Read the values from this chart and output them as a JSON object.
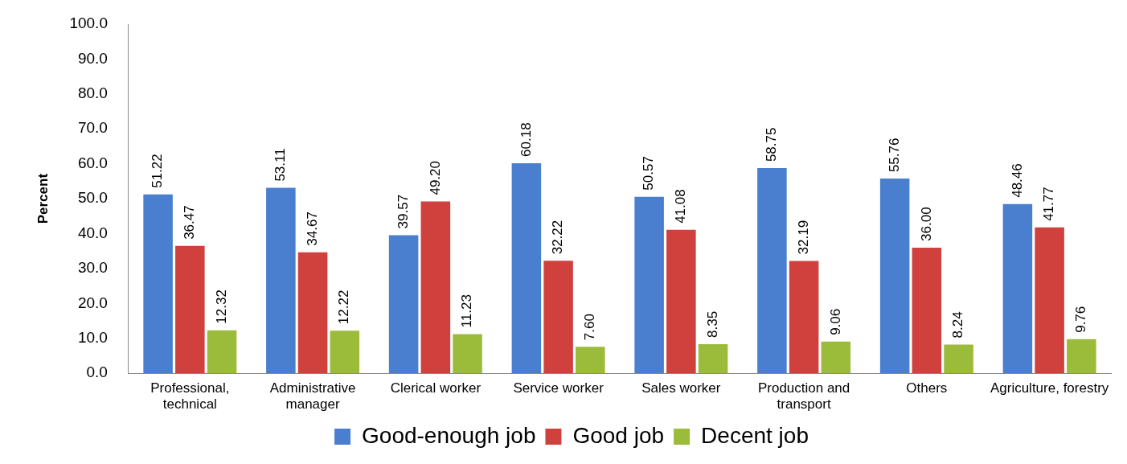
{
  "chart_data": {
    "type": "bar",
    "ylabel": "Percent",
    "categories": [
      "Professional, technical",
      "Administrative manager",
      "Clerical worker",
      "Service worker",
      "Sales worker",
      "Production and transport",
      "Others",
      "Agriculture, forestry"
    ],
    "series": [
      {
        "name": "Good-enough job",
        "color": "#4a7fcf",
        "values": [
          51.22,
          53.11,
          39.57,
          60.18,
          50.57,
          58.75,
          55.76,
          48.46
        ],
        "value_labels": [
          "51.22",
          "53.11",
          "39.57",
          "60.18",
          "50.57",
          "58.75",
          "55.76",
          "48.46"
        ]
      },
      {
        "name": "Good job",
        "color": "#d0413e",
        "values": [
          36.47,
          34.67,
          49.2,
          32.22,
          41.08,
          32.19,
          36.0,
          41.77
        ],
        "value_labels": [
          "36.47",
          "34.67",
          "49.20",
          "32.22",
          "41.08",
          "32.19",
          "36.00",
          "41.77"
        ]
      },
      {
        "name": "Decent job",
        "color": "#9bbb3b",
        "values": [
          12.32,
          12.22,
          11.23,
          7.6,
          8.35,
          9.06,
          8.24,
          9.76
        ],
        "value_labels": [
          "12.32",
          "12.22",
          "11.23",
          "7.60",
          "8.35",
          "9.06",
          "8.24",
          "9.76"
        ]
      }
    ],
    "ylim": [
      0,
      100
    ],
    "yticks": [
      {
        "value": 0,
        "label": "0.0"
      },
      {
        "value": 10,
        "label": "10.0"
      },
      {
        "value": 20,
        "label": "20.0"
      },
      {
        "value": 30,
        "label": "30.0"
      },
      {
        "value": 40,
        "label": "40.0"
      },
      {
        "value": 50,
        "label": "50.0"
      },
      {
        "value": 60,
        "label": "60.0"
      },
      {
        "value": 70,
        "label": "70.0"
      },
      {
        "value": 80,
        "label": "80.0"
      },
      {
        "value": 90,
        "label": "90.0"
      },
      {
        "value": 100,
        "label": "100.0"
      }
    ],
    "grid": false,
    "legend": "bottom"
  }
}
